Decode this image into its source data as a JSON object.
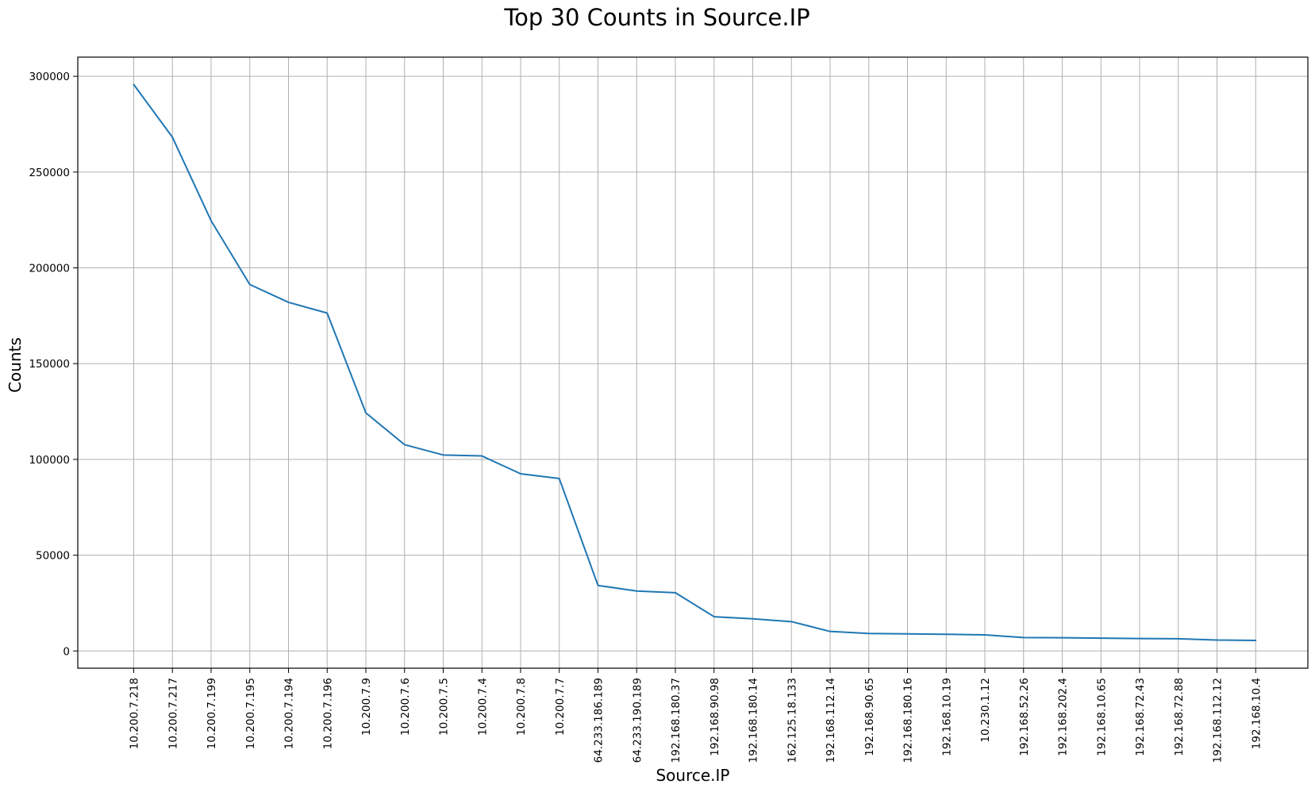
{
  "chart_data": {
    "type": "line",
    "title": "Top 30 Counts in Source.IP",
    "xlabel": "Source.IP",
    "ylabel": "Counts",
    "categories": [
      "10.200.7.218",
      "10.200.7.217",
      "10.200.7.199",
      "10.200.7.195",
      "10.200.7.194",
      "10.200.7.196",
      "10.200.7.9",
      "10.200.7.6",
      "10.200.7.5",
      "10.200.7.4",
      "10.200.7.8",
      "10.200.7.7",
      "64.233.186.189",
      "64.233.190.189",
      "192.168.180.37",
      "192.168.90.98",
      "192.168.180.14",
      "162.125.18.133",
      "192.168.112.14",
      "192.168.90.65",
      "192.168.180.16",
      "192.168.10.19",
      "10.230.1.12",
      "192.168.52.26",
      "192.168.202.4",
      "192.168.10.65",
      "192.168.72.43",
      "192.168.72.88",
      "192.168.112.12",
      "192.168.10.4"
    ],
    "series": [
      {
        "values": [
          295700,
          268200,
          224600,
          191300,
          182000,
          176400,
          124300,
          107700,
          102300,
          101800,
          92500,
          90000,
          34200,
          31300,
          30400,
          17900,
          16800,
          15300,
          10200,
          9100,
          8900,
          8700,
          8400,
          7000,
          6900,
          6700,
          6500,
          6400,
          5700,
          5500
        ],
        "color": "#1f77b4"
      }
    ],
    "yticks": [
      0,
      50000,
      100000,
      150000,
      200000,
      250000,
      300000
    ],
    "ylim": [
      -9000,
      310000
    ],
    "grid": true,
    "legend": "none"
  }
}
